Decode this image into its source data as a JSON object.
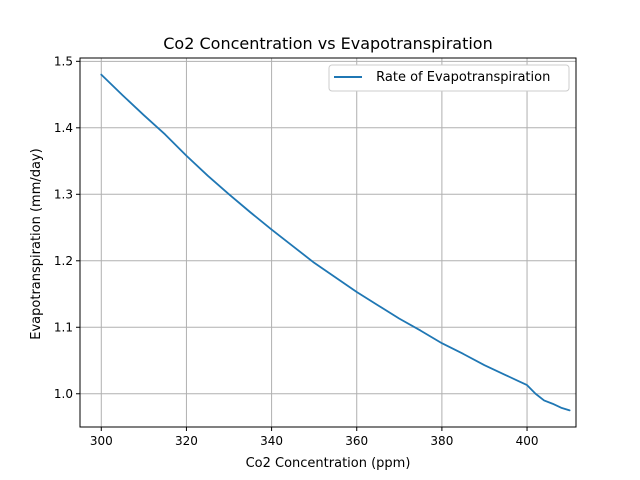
{
  "chart_data": {
    "type": "line",
    "title": "Co2 Concentration vs Evapotranspiration",
    "xlabel": "Co2 Concentration (ppm)",
    "ylabel": "Evapotranspiration (mm/day)",
    "xlim": [
      295,
      411.5
    ],
    "ylim": [
      0.95,
      1.505
    ],
    "xticks": [
      300,
      320,
      340,
      360,
      380,
      400
    ],
    "xtick_labels": [
      "300",
      "320",
      "340",
      "360",
      "380",
      "400"
    ],
    "yticks": [
      1.0,
      1.1,
      1.2,
      1.3,
      1.4,
      1.5
    ],
    "ytick_labels": [
      "1.0",
      "1.1",
      "1.2",
      "1.3",
      "1.4",
      "1.5"
    ],
    "grid": true,
    "legend_position": "top-right",
    "series": [
      {
        "name": " Rate of Evapotranspiration",
        "color": "#1f77b4",
        "x": [
          300,
          305,
          310,
          315,
          320,
          325,
          330,
          335,
          340,
          345,
          350,
          355,
          360,
          365,
          370,
          375,
          380,
          385,
          390,
          395,
          400,
          402,
          404,
          406,
          408,
          410
        ],
        "y": [
          1.48,
          1.449,
          1.419,
          1.39,
          1.358,
          1.328,
          1.3,
          1.273,
          1.247,
          1.222,
          1.197,
          1.175,
          1.153,
          1.133,
          1.113,
          1.095,
          1.076,
          1.06,
          1.043,
          1.028,
          1.013,
          1.0,
          0.99,
          0.985,
          0.979,
          0.975
        ]
      }
    ]
  }
}
